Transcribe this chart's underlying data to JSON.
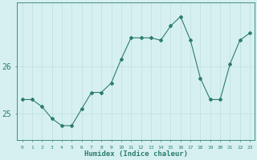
{
  "x": [
    0,
    1,
    2,
    3,
    4,
    5,
    6,
    7,
    8,
    9,
    10,
    11,
    12,
    13,
    14,
    15,
    16,
    17,
    18,
    19,
    20,
    21,
    22,
    23
  ],
  "y": [
    25.3,
    25.3,
    25.15,
    24.9,
    24.75,
    24.75,
    25.1,
    25.45,
    25.45,
    25.65,
    26.15,
    26.6,
    26.6,
    26.6,
    26.55,
    26.85,
    27.05,
    26.55,
    25.75,
    25.3,
    25.3,
    26.05,
    26.55,
    26.7
  ],
  "line_color": "#2d7d6e",
  "marker": "D",
  "markersize": 2.0,
  "linewidth": 0.8,
  "bg_color": "#d6f0f0",
  "grid_color": "#c0dede",
  "axis_label_color": "#2d7d6e",
  "tick_color": "#2d7d6e",
  "xlabel": "Humidex (Indice chaleur)",
  "xlabel_fontsize": 6.5,
  "yticks": [
    25,
    26
  ],
  "ylim": [
    24.45,
    27.35
  ],
  "xlim": [
    -0.5,
    23.5
  ],
  "font_family": "monospace"
}
